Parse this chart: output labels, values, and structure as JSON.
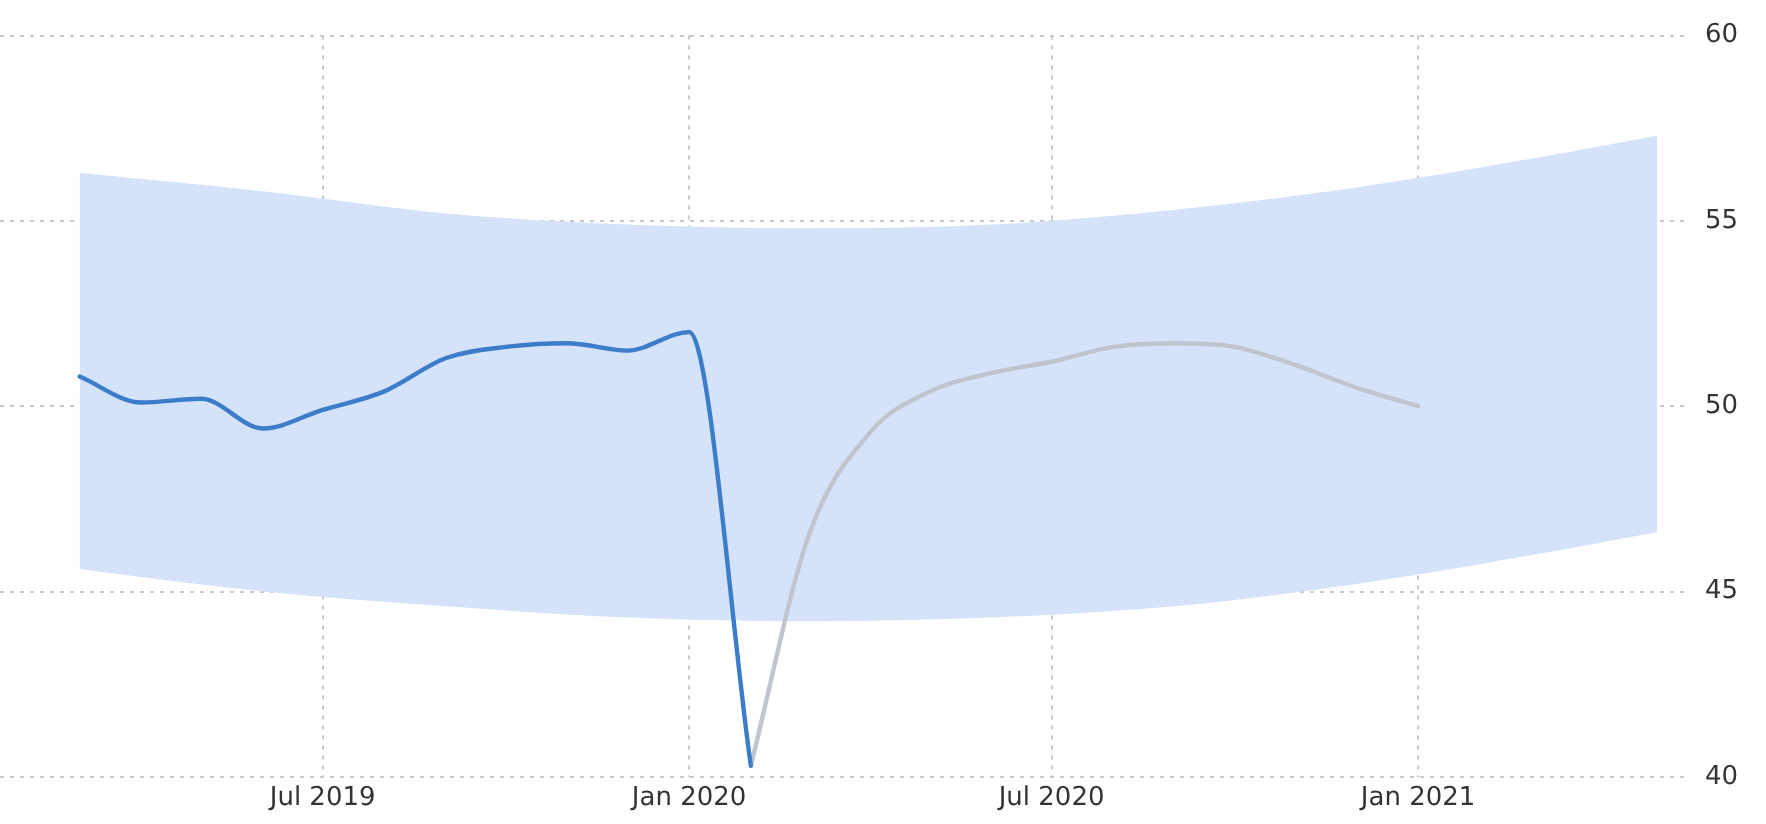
{
  "chart_data": {
    "type": "line",
    "series": [
      {
        "color": "#3d7cc9",
        "x": [
          "2019-03",
          "2019-04",
          "2019-05",
          "2019-06",
          "2019-07",
          "2019-08",
          "2019-09",
          "2019-10",
          "2019-11",
          "2019-12",
          "2020-01",
          "2020-02"
        ],
        "values": [
          50.8,
          50.1,
          50.2,
          49.4,
          49.9,
          50.4,
          51.3,
          51.6,
          51.7,
          51.5,
          52.0,
          40.3
        ]
      },
      {
        "color": "#c0c4cc",
        "x": [
          "2020-02",
          "2020-03",
          "2020-04",
          "2020-05",
          "2020-06",
          "2020-07",
          "2020-08",
          "2020-09",
          "2020-10",
          "2020-11",
          "2020-12",
          "2021-01"
        ],
        "values": [
          40.3,
          46.5,
          49.3,
          50.4,
          50.9,
          51.2,
          51.6,
          51.7,
          51.6,
          51.1,
          50.5,
          50.0
        ]
      },
      {
        "color": "#d4e3fa",
        "x": [
          "2019-03",
          "2019-06",
          "2019-09",
          "2019-12",
          "2020-03",
          "2020-06",
          "2020-09",
          "2020-12",
          "2021-03",
          "2021-05"
        ],
        "values": [
          null,
          null,
          null,
          null,
          null,
          null,
          null,
          null,
          null,
          null
        ],
        "lower": [
          45.6,
          45.0,
          44.6,
          44.3,
          44.2,
          44.3,
          44.6,
          45.2,
          46.0,
          46.6
        ],
        "upper": [
          56.3,
          55.8,
          55.2,
          54.9,
          54.8,
          54.9,
          55.3,
          55.9,
          56.7,
          57.3
        ]
      }
    ],
    "xlim": [
      "2019-01-20",
      "2021-05-15"
    ],
    "xticks": [
      {
        "value": "2019-07",
        "label": "Jul 2019"
      },
      {
        "value": "2020-01",
        "label": "Jan 2020"
      },
      {
        "value": "2020-07",
        "label": "Jul 2020"
      },
      {
        "value": "2021-01",
        "label": "Jan 2021"
      }
    ],
    "ylim": [
      40,
      60
    ],
    "yticks": [
      40,
      45,
      50,
      55,
      60
    ],
    "grid": true,
    "legend": false,
    "marker": "none",
    "line_style": "solid"
  }
}
